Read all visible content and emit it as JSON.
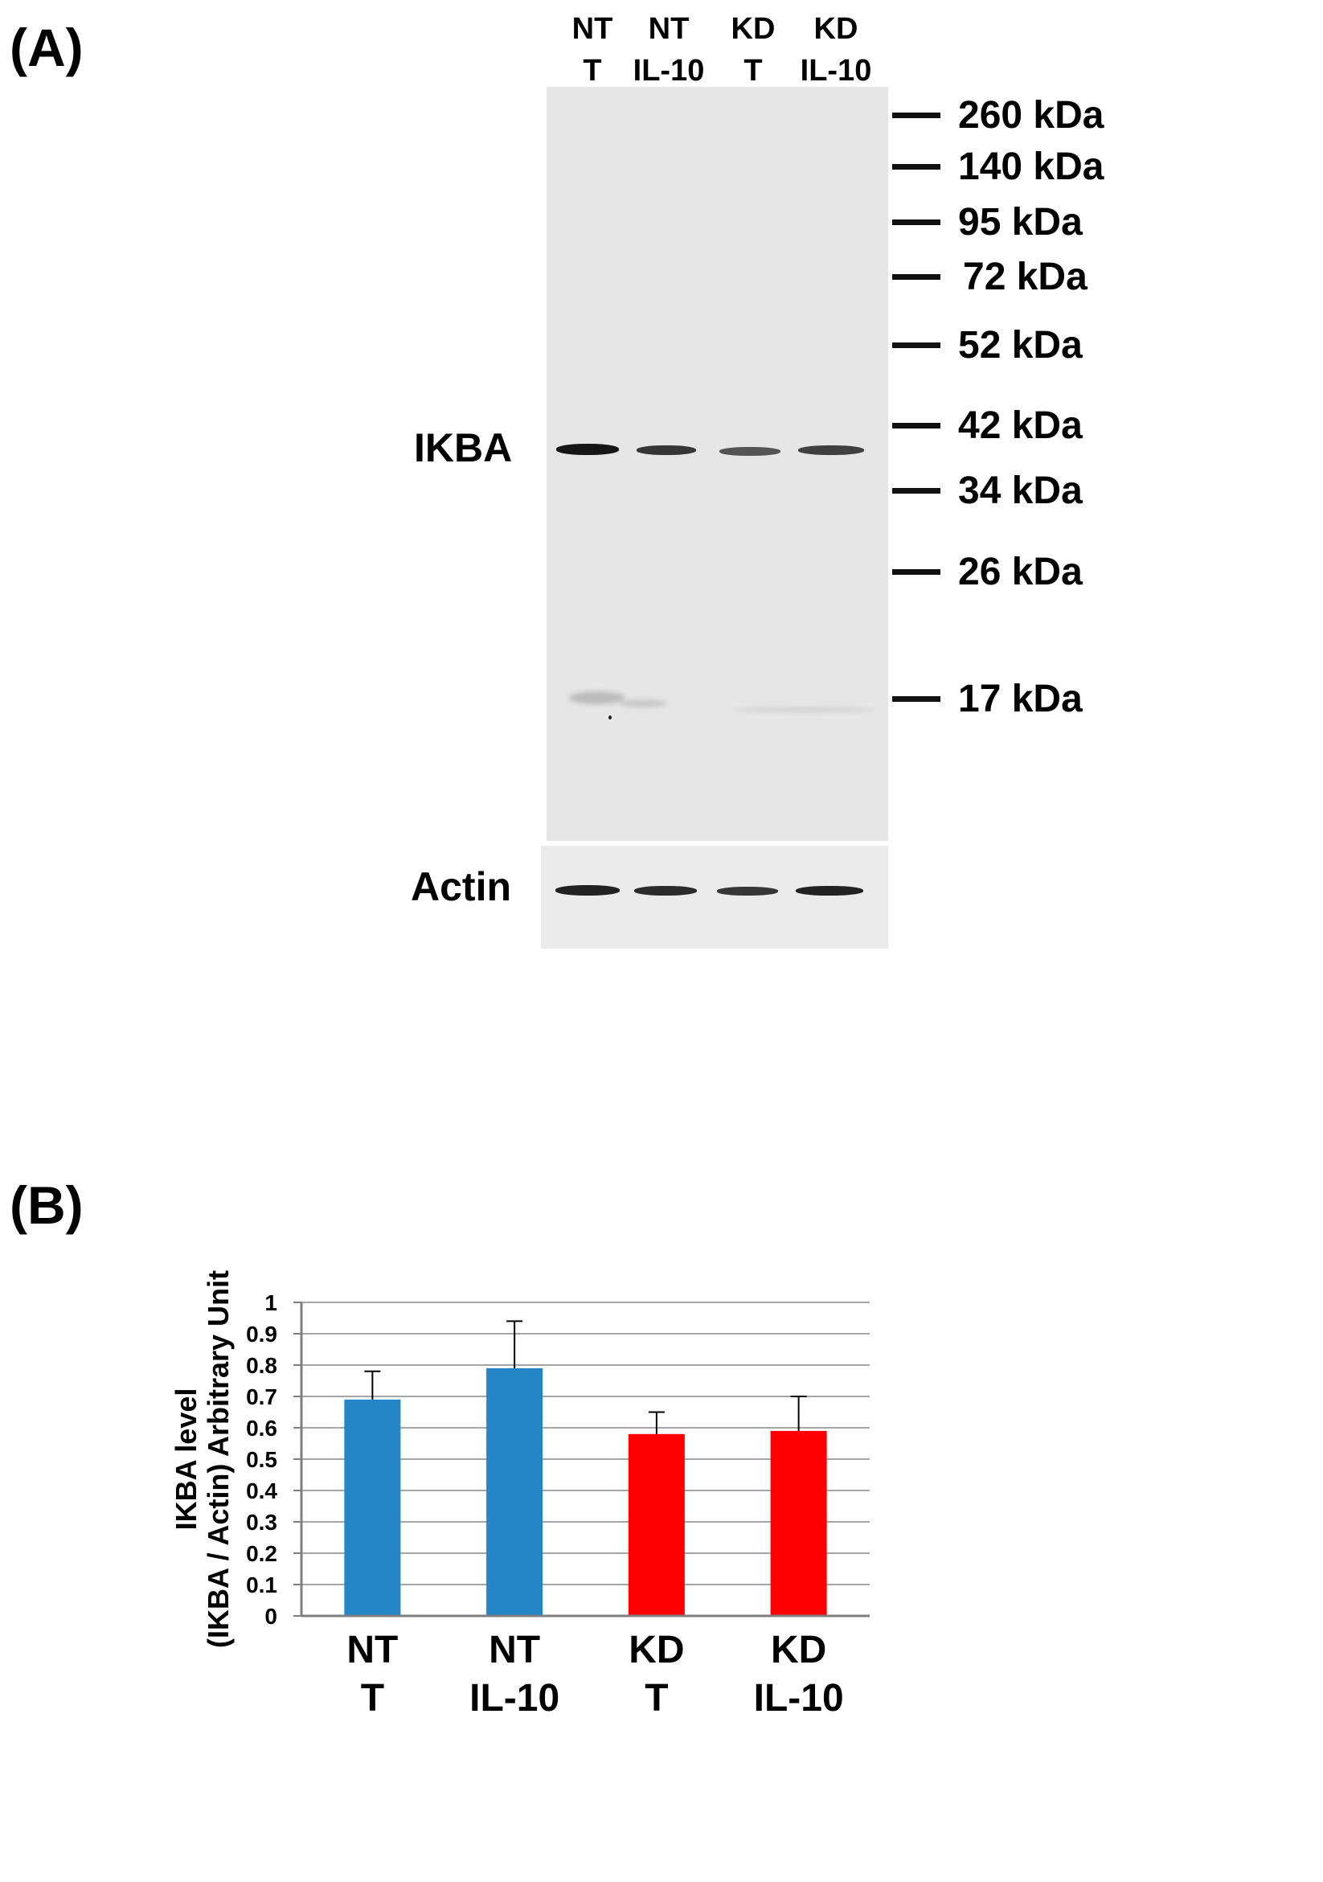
{
  "panel_a_label": "(A)",
  "panel_b_label": "(B)",
  "lanes": [
    {
      "line1": "NT",
      "line2": "T"
    },
    {
      "line1": "NT",
      "line2": "IL-10"
    },
    {
      "line1": "KD",
      "line2": "T"
    },
    {
      "line1": "KD",
      "line2": "IL-10"
    }
  ],
  "markers": [
    "260 kDa",
    "140 kDa",
    "95 kDa",
    "72 kDa",
    "52 kDa",
    "42 kDa",
    "34 kDa",
    "26 kDa",
    "17 kDa"
  ],
  "blot_labels": {
    "ikba": "IKBA",
    "actin": "Actin"
  },
  "band_intensity": {
    "ikba": [
      1.0,
      0.85,
      0.7,
      0.8
    ],
    "actin": [
      0.95,
      0.9,
      0.85,
      0.95
    ]
  },
  "colors": {
    "nt_bar": "#2585c7",
    "kd_bar": "#ff0000",
    "grid": "#a6a6a6",
    "band": "#161616"
  },
  "chart_data": {
    "type": "bar",
    "categories": [
      {
        "line1": "NT",
        "line2": "T"
      },
      {
        "line1": "NT",
        "line2": "IL-10"
      },
      {
        "line1": "KD",
        "line2": "T"
      },
      {
        "line1": "KD",
        "line2": "IL-10"
      }
    ],
    "values": [
      0.69,
      0.79,
      0.58,
      0.59
    ],
    "errors": [
      0.09,
      0.15,
      0.07,
      0.11
    ],
    "bar_colors": [
      "#2585c7",
      "#2585c7",
      "#ff0000",
      "#ff0000"
    ],
    "ylabel_line1": "IKBA level",
    "ylabel_line2": "(IKBA / Actin) Arbitrary Unit",
    "ylim": [
      0,
      1
    ],
    "yticks": [
      "0",
      "0.1",
      "0.2",
      "0.3",
      "0.4",
      "0.5",
      "0.6",
      "0.7",
      "0.8",
      "0.9",
      "1"
    ],
    "grid": true
  }
}
